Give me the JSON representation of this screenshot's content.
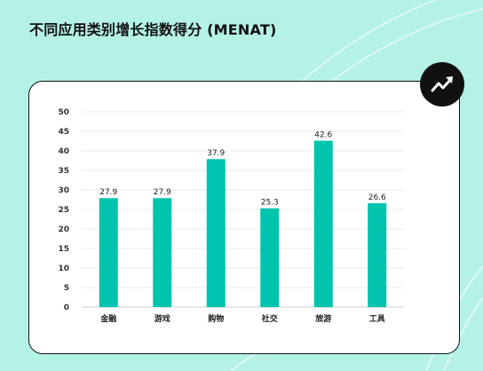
{
  "page": {
    "title": "不同应用类别增长指数得分 (MENAT)",
    "badge_icon": "trend-up-icon"
  },
  "colors": {
    "background": "#b4f1e6",
    "bar": "#00c4ad",
    "gridline": "#e8e8e8"
  },
  "chart_data": {
    "type": "bar",
    "categories": [
      "金融",
      "游戏",
      "购物",
      "社交",
      "旅游",
      "工具"
    ],
    "values": [
      27.9,
      27.9,
      37.9,
      25.3,
      42.6,
      26.6
    ],
    "value_labels": [
      "27.9",
      "27.9",
      "37.9",
      "25.3",
      "42.6",
      "26.6"
    ],
    "y_ticks": [
      "0",
      "5",
      "10",
      "15",
      "20",
      "25",
      "30",
      "35",
      "40",
      "45",
      "50"
    ],
    "ylim": [
      0,
      50
    ],
    "title": "",
    "xlabel": "",
    "ylabel": "",
    "grid": true
  }
}
